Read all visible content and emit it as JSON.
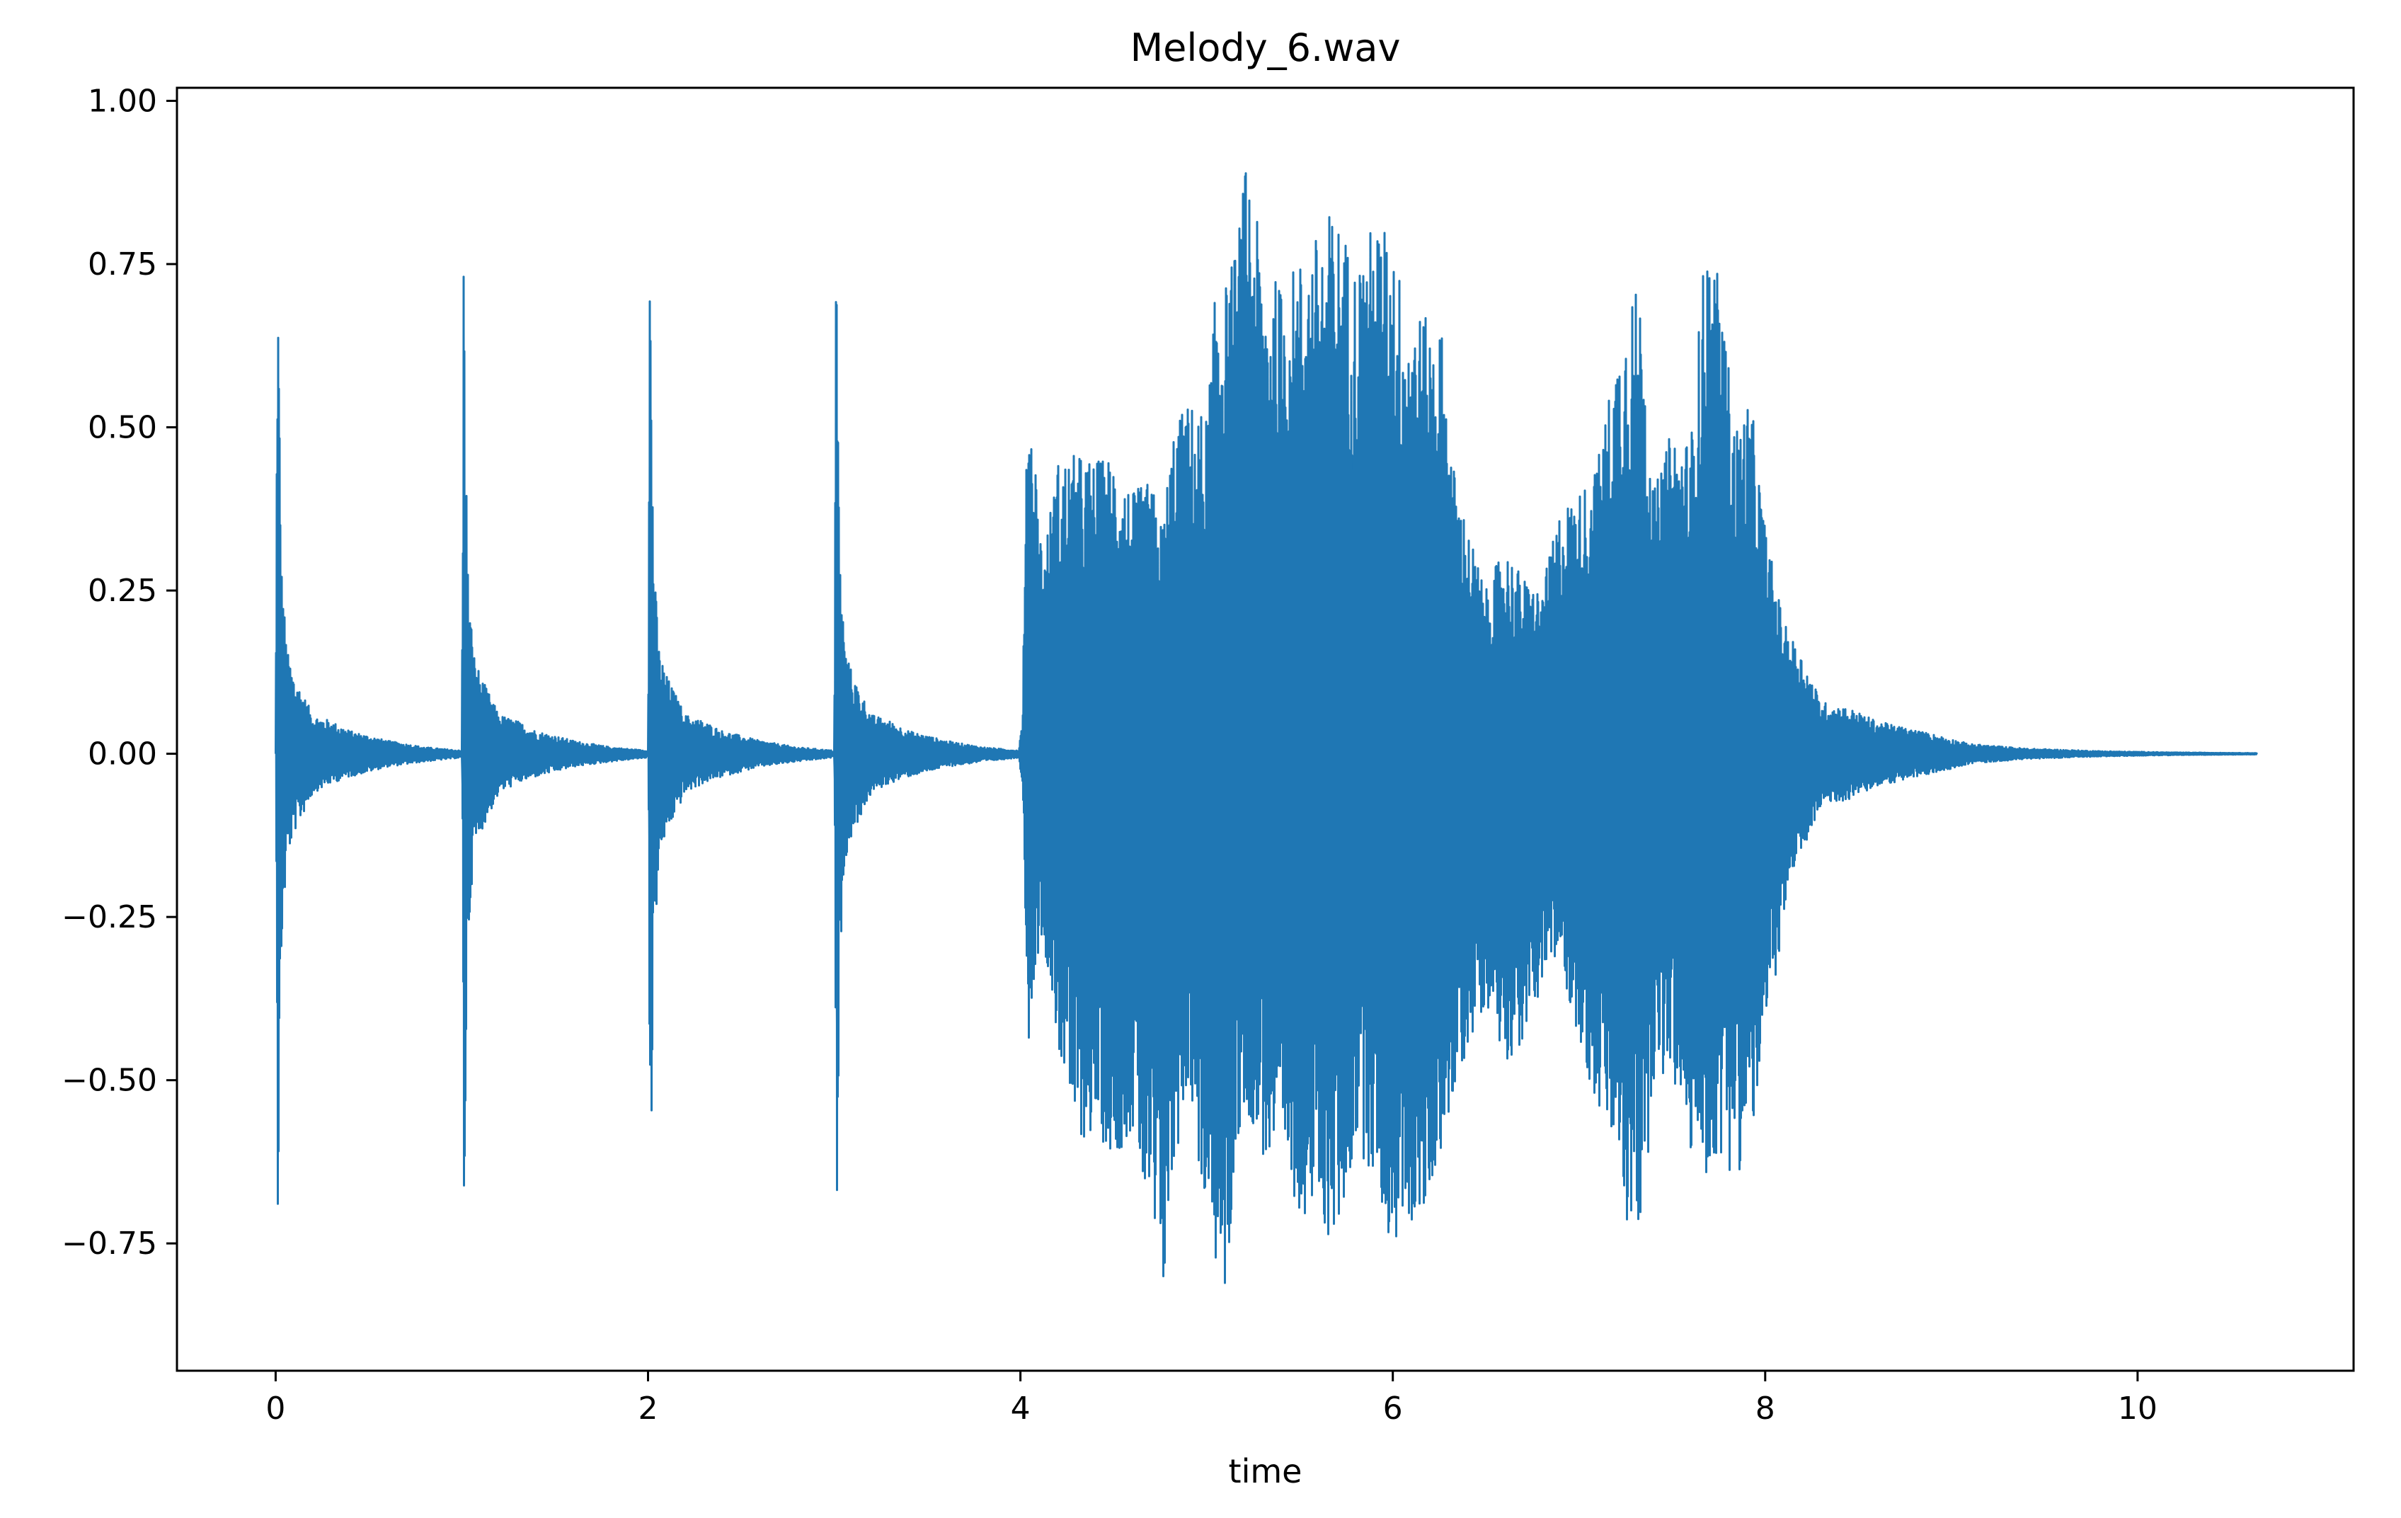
{
  "chart_data": {
    "type": "line",
    "title": "Melody_6.wav",
    "xlabel": "time",
    "ylabel": "",
    "xlim": [
      -0.53,
      11.16
    ],
    "ylim": [
      -0.945,
      1.02
    ],
    "xticks": [
      0,
      2,
      4,
      6,
      8,
      10
    ],
    "xtick_labels": [
      "0",
      "2",
      "4",
      "6",
      "8",
      "10"
    ],
    "yticks": [
      1.0,
      0.75,
      0.5,
      0.25,
      0.0,
      -0.25,
      -0.5,
      -0.75
    ],
    "ytick_labels": [
      "1.00",
      "0.75",
      "0.50",
      "0.25",
      "0.00",
      "−0.25",
      "−0.50",
      "−0.75"
    ],
    "grid": false,
    "legend": "none",
    "series_color": "#1f77b4",
    "duration": 10.64,
    "series": [
      {
        "values_description_note": "",
        "envelope": [
          [
            0.0,
            0.0,
            0.0
          ],
          [
            0.01,
            0.83,
            -0.74
          ],
          [
            0.03,
            0.3,
            -0.3
          ],
          [
            0.06,
            0.16,
            -0.16
          ],
          [
            0.1,
            0.12,
            -0.12
          ],
          [
            0.2,
            0.06,
            -0.06
          ],
          [
            0.3,
            0.05,
            -0.045
          ],
          [
            0.4,
            0.035,
            -0.035
          ],
          [
            0.6,
            0.02,
            -0.02
          ],
          [
            0.8,
            0.01,
            -0.012
          ],
          [
            0.99,
            0.005,
            -0.006
          ],
          [
            1.0,
            0.0,
            0.0
          ],
          [
            1.01,
            0.83,
            -0.74
          ],
          [
            1.03,
            0.3,
            -0.3
          ],
          [
            1.06,
            0.16,
            -0.16
          ],
          [
            1.1,
            0.12,
            -0.12
          ],
          [
            1.2,
            0.06,
            -0.06
          ],
          [
            1.3,
            0.05,
            -0.045
          ],
          [
            1.4,
            0.035,
            -0.035
          ],
          [
            1.6,
            0.02,
            -0.02
          ],
          [
            1.8,
            0.01,
            -0.012
          ],
          [
            1.99,
            0.005,
            -0.006
          ],
          [
            2.0,
            0.0,
            0.0
          ],
          [
            2.01,
            0.83,
            -0.74
          ],
          [
            2.03,
            0.3,
            -0.3
          ],
          [
            2.06,
            0.16,
            -0.16
          ],
          [
            2.1,
            0.12,
            -0.12
          ],
          [
            2.2,
            0.06,
            -0.06
          ],
          [
            2.3,
            0.05,
            -0.045
          ],
          [
            2.4,
            0.035,
            -0.035
          ],
          [
            2.6,
            0.02,
            -0.02
          ],
          [
            2.8,
            0.01,
            -0.012
          ],
          [
            2.99,
            0.005,
            -0.006
          ],
          [
            3.0,
            0.0,
            0.0
          ],
          [
            3.01,
            0.83,
            -0.74
          ],
          [
            3.03,
            0.3,
            -0.3
          ],
          [
            3.06,
            0.16,
            -0.16
          ],
          [
            3.1,
            0.12,
            -0.12
          ],
          [
            3.2,
            0.06,
            -0.06
          ],
          [
            3.3,
            0.05,
            -0.045
          ],
          [
            3.4,
            0.035,
            -0.035
          ],
          [
            3.6,
            0.02,
            -0.02
          ],
          [
            3.8,
            0.01,
            -0.012
          ],
          [
            3.99,
            0.005,
            -0.006
          ],
          [
            4.01,
            0.05,
            -0.05
          ],
          [
            4.04,
            0.58,
            -0.45
          ],
          [
            4.08,
            0.46,
            -0.32
          ],
          [
            4.12,
            0.3,
            -0.28
          ],
          [
            4.2,
            0.45,
            -0.45
          ],
          [
            4.3,
            0.46,
            -0.6
          ],
          [
            4.4,
            0.45,
            -0.58
          ],
          [
            4.5,
            0.46,
            -0.62
          ],
          [
            4.6,
            0.4,
            -0.58
          ],
          [
            4.7,
            0.42,
            -0.75
          ],
          [
            4.76,
            0.35,
            -0.86
          ],
          [
            4.82,
            0.5,
            -0.65
          ],
          [
            4.9,
            0.54,
            -0.5
          ],
          [
            5.0,
            0.52,
            -0.74
          ],
          [
            5.06,
            0.76,
            -0.8
          ],
          [
            5.1,
            0.72,
            -0.86
          ],
          [
            5.16,
            0.78,
            -0.6
          ],
          [
            5.22,
            0.93,
            -0.55
          ],
          [
            5.3,
            0.75,
            -0.62
          ],
          [
            5.4,
            0.72,
            -0.65
          ],
          [
            5.5,
            0.76,
            -0.7
          ],
          [
            5.6,
            0.8,
            -0.72
          ],
          [
            5.66,
            0.83,
            -0.75
          ],
          [
            5.72,
            0.82,
            -0.73
          ],
          [
            5.8,
            0.75,
            -0.6
          ],
          [
            5.9,
            0.82,
            -0.65
          ],
          [
            6.0,
            0.8,
            -0.78
          ],
          [
            6.06,
            0.7,
            -0.7
          ],
          [
            6.14,
            0.68,
            -0.75
          ],
          [
            6.2,
            0.66,
            -0.68
          ],
          [
            6.26,
            0.66,
            -0.6
          ],
          [
            6.32,
            0.45,
            -0.55
          ],
          [
            6.4,
            0.35,
            -0.45
          ],
          [
            6.5,
            0.25,
            -0.38
          ],
          [
            6.6,
            0.32,
            -0.47
          ],
          [
            6.7,
            0.27,
            -0.45
          ],
          [
            6.8,
            0.25,
            -0.35
          ],
          [
            6.9,
            0.38,
            -0.32
          ],
          [
            7.0,
            0.4,
            -0.45
          ],
          [
            7.1,
            0.45,
            -0.55
          ],
          [
            7.2,
            0.62,
            -0.62
          ],
          [
            7.28,
            0.72,
            -0.78
          ],
          [
            7.34,
            0.7,
            -0.72
          ],
          [
            7.4,
            0.4,
            -0.5
          ],
          [
            7.5,
            0.5,
            -0.5
          ],
          [
            7.6,
            0.48,
            -0.62
          ],
          [
            7.68,
            0.8,
            -0.65
          ],
          [
            7.76,
            0.72,
            -0.62
          ],
          [
            7.84,
            0.5,
            -0.65
          ],
          [
            7.92,
            0.55,
            -0.6
          ],
          [
            8.0,
            0.35,
            -0.45
          ],
          [
            8.1,
            0.2,
            -0.25
          ],
          [
            8.2,
            0.15,
            -0.15
          ],
          [
            8.3,
            0.08,
            -0.08
          ],
          [
            8.45,
            0.07,
            -0.07
          ],
          [
            8.6,
            0.05,
            -0.05
          ],
          [
            8.75,
            0.04,
            -0.04
          ],
          [
            8.9,
            0.03,
            -0.03
          ],
          [
            9.1,
            0.015,
            -0.015
          ],
          [
            9.4,
            0.008,
            -0.008
          ],
          [
            9.8,
            0.004,
            -0.004
          ],
          [
            10.2,
            0.002,
            -0.002
          ],
          [
            10.64,
            0.001,
            -0.001
          ]
        ]
      }
    ]
  }
}
